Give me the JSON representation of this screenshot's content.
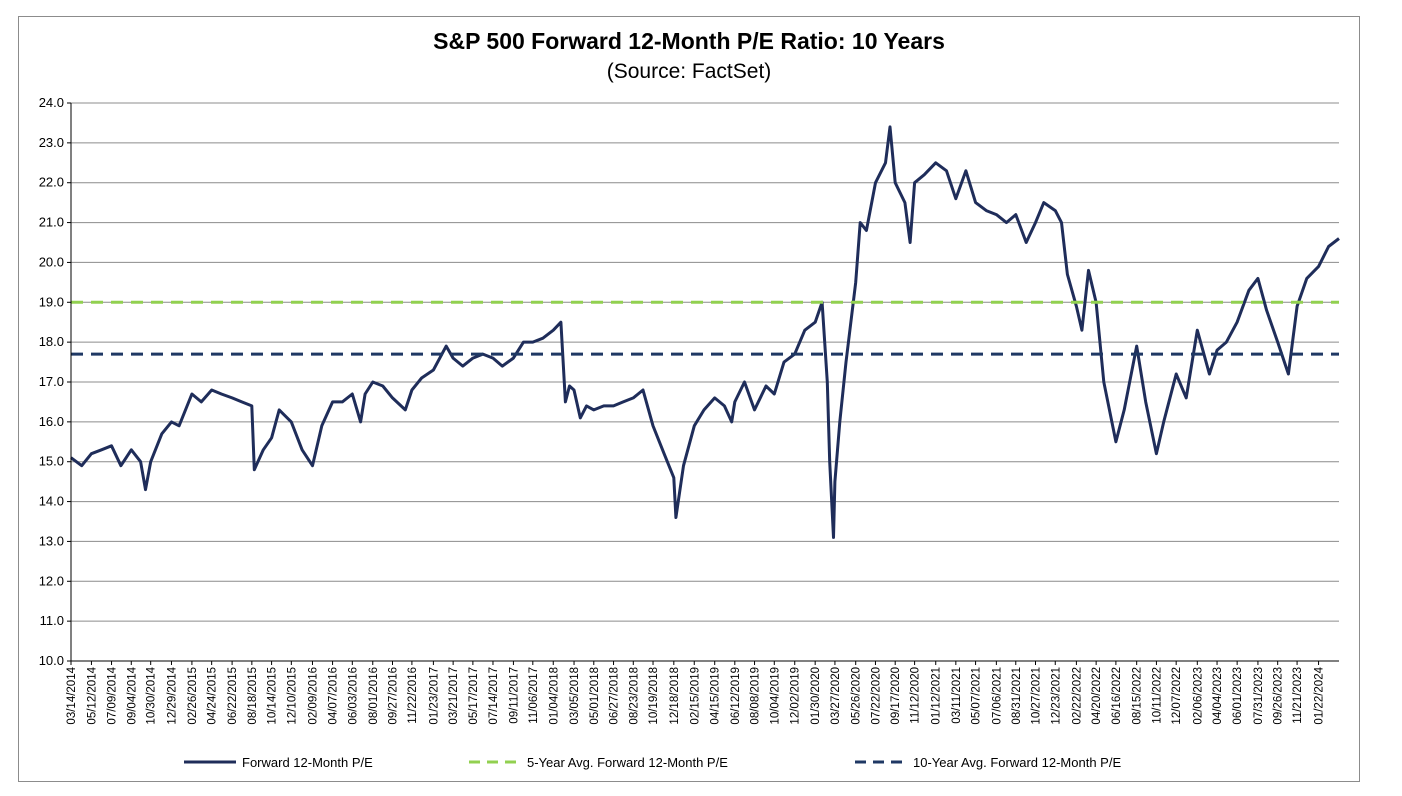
{
  "chart_data": {
    "type": "line",
    "title": "S&P 500 Forward 12-Month P/E Ratio: 10 Years",
    "subtitle": "(Source: FactSet)",
    "xlabel": "",
    "ylabel": "",
    "ylim": [
      10.0,
      24.0
    ],
    "yticks": [
      "10.0",
      "11.0",
      "12.0",
      "13.0",
      "14.0",
      "15.0",
      "16.0",
      "17.0",
      "18.0",
      "19.0",
      "20.0",
      "21.0",
      "22.0",
      "23.0",
      "24.0"
    ],
    "grid": "horizontal",
    "legend_position": "bottom",
    "xticks": [
      "03/14/2014",
      "05/12/2014",
      "07/09/2014",
      "09/04/2014",
      "10/30/2014",
      "12/29/2014",
      "02/26/2015",
      "04/24/2015",
      "06/22/2015",
      "08/18/2015",
      "10/14/2015",
      "12/10/2015",
      "02/09/2016",
      "04/07/2016",
      "06/03/2016",
      "08/01/2016",
      "09/27/2016",
      "11/22/2016",
      "01/23/2017",
      "03/21/2017",
      "05/17/2017",
      "07/14/2017",
      "09/11/2017",
      "11/06/2017",
      "01/04/2018",
      "03/05/2018",
      "05/01/2018",
      "06/27/2018",
      "08/23/2018",
      "10/19/2018",
      "12/18/2018",
      "02/15/2019",
      "04/15/2019",
      "06/12/2019",
      "08/08/2019",
      "10/04/2019",
      "12/02/2019",
      "01/30/2020",
      "03/27/2020",
      "05/26/2020",
      "07/22/2020",
      "09/17/2020",
      "11/12/2020",
      "01/12/2021",
      "03/11/2021",
      "05/07/2021",
      "07/06/2021",
      "08/31/2021",
      "10/27/2021",
      "12/23/2021",
      "02/22/2022",
      "04/20/2022",
      "06/16/2022",
      "08/15/2022",
      "10/11/2022",
      "12/07/2022",
      "02/06/2023",
      "04/04/2023",
      "06/01/2023",
      "07/31/2023",
      "09/26/2023",
      "11/21/2023",
      "01/22/2024"
    ],
    "x_range": [
      "03/14/2014",
      "03/21/2024"
    ],
    "series": [
      {
        "name": "Forward 12-Month P/E",
        "color": "#1f2d5a",
        "points": [
          [
            "03/14/2014",
            15.1
          ],
          [
            "04/14/2014",
            14.9
          ],
          [
            "05/12/2014",
            15.2
          ],
          [
            "06/10/2014",
            15.3
          ],
          [
            "07/09/2014",
            15.4
          ],
          [
            "08/05/2014",
            14.9
          ],
          [
            "09/04/2014",
            15.3
          ],
          [
            "10/01/2014",
            15.0
          ],
          [
            "10/15/2014",
            14.3
          ],
          [
            "10/30/2014",
            15.0
          ],
          [
            "12/01/2014",
            15.7
          ],
          [
            "12/29/2014",
            16.0
          ],
          [
            "01/20/2015",
            15.9
          ],
          [
            "02/26/2015",
            16.7
          ],
          [
            "03/25/2015",
            16.5
          ],
          [
            "04/24/2015",
            16.8
          ],
          [
            "05/22/2015",
            16.7
          ],
          [
            "06/22/2015",
            16.6
          ],
          [
            "07/20/2015",
            16.5
          ],
          [
            "08/18/2015",
            16.4
          ],
          [
            "08/25/2015",
            14.8
          ],
          [
            "09/20/2015",
            15.3
          ],
          [
            "10/14/2015",
            15.6
          ],
          [
            "11/05/2015",
            16.3
          ],
          [
            "12/10/2015",
            16.0
          ],
          [
            "01/10/2016",
            15.3
          ],
          [
            "02/09/2016",
            14.9
          ],
          [
            "03/07/2016",
            15.9
          ],
          [
            "04/07/2016",
            16.5
          ],
          [
            "05/05/2016",
            16.5
          ],
          [
            "06/03/2016",
            16.7
          ],
          [
            "06/27/2016",
            16.0
          ],
          [
            "07/10/2016",
            16.7
          ],
          [
            "08/01/2016",
            17.0
          ],
          [
            "08/30/2016",
            16.9
          ],
          [
            "09/27/2016",
            16.6
          ],
          [
            "11/03/2016",
            16.3
          ],
          [
            "11/22/2016",
            16.8
          ],
          [
            "12/20/2016",
            17.1
          ],
          [
            "01/23/2017",
            17.3
          ],
          [
            "03/01/2017",
            17.9
          ],
          [
            "03/21/2017",
            17.6
          ],
          [
            "04/18/2017",
            17.4
          ],
          [
            "05/17/2017",
            17.6
          ],
          [
            "06/15/2017",
            17.7
          ],
          [
            "07/14/2017",
            17.6
          ],
          [
            "08/10/2017",
            17.4
          ],
          [
            "09/11/2017",
            17.6
          ],
          [
            "10/10/2017",
            18.0
          ],
          [
            "11/06/2017",
            18.0
          ],
          [
            "12/05/2017",
            18.1
          ],
          [
            "01/04/2018",
            18.3
          ],
          [
            "01/26/2018",
            18.5
          ],
          [
            "02/08/2018",
            16.5
          ],
          [
            "02/20/2018",
            16.9
          ],
          [
            "03/05/2018",
            16.8
          ],
          [
            "03/23/2018",
            16.1
          ],
          [
            "04/10/2018",
            16.4
          ],
          [
            "05/01/2018",
            16.3
          ],
          [
            "05/30/2018",
            16.4
          ],
          [
            "06/27/2018",
            16.4
          ],
          [
            "07/25/2018",
            16.5
          ],
          [
            "08/23/2018",
            16.6
          ],
          [
            "09/20/2018",
            16.8
          ],
          [
            "10/19/2018",
            15.9
          ],
          [
            "11/20/2018",
            15.2
          ],
          [
            "12/18/2018",
            14.6
          ],
          [
            "12/24/2018",
            13.6
          ],
          [
            "01/15/2019",
            14.9
          ],
          [
            "02/15/2019",
            15.9
          ],
          [
            "03/15/2019",
            16.3
          ],
          [
            "04/15/2019",
            16.6
          ],
          [
            "05/13/2019",
            16.4
          ],
          [
            "06/03/2019",
            16.0
          ],
          [
            "06/12/2019",
            16.5
          ],
          [
            "07/10/2019",
            17.0
          ],
          [
            "08/08/2019",
            16.3
          ],
          [
            "09/10/2019",
            16.9
          ],
          [
            "10/04/2019",
            16.7
          ],
          [
            "11/01/2019",
            17.5
          ],
          [
            "12/02/2019",
            17.7
          ],
          [
            "12/31/2019",
            18.3
          ],
          [
            "01/30/2020",
            18.5
          ],
          [
            "02/19/2020",
            19.0
          ],
          [
            "03/05/2020",
            17.0
          ],
          [
            "03/12/2020",
            15.0
          ],
          [
            "03/23/2020",
            13.1
          ],
          [
            "03/27/2020",
            14.5
          ],
          [
            "04/10/2020",
            16.0
          ],
          [
            "04/28/2020",
            17.5
          ],
          [
            "05/26/2020",
            19.5
          ],
          [
            "06/08/2020",
            21.0
          ],
          [
            "06/26/2020",
            20.8
          ],
          [
            "07/22/2020",
            22.0
          ],
          [
            "08/20/2020",
            22.5
          ],
          [
            "09/02/2020",
            23.4
          ],
          [
            "09/17/2020",
            22.0
          ],
          [
            "10/15/2020",
            21.5
          ],
          [
            "10/30/2020",
            20.5
          ],
          [
            "11/12/2020",
            22.0
          ],
          [
            "12/10/2020",
            22.2
          ],
          [
            "01/12/2021",
            22.5
          ],
          [
            "02/12/2021",
            22.3
          ],
          [
            "03/11/2021",
            21.6
          ],
          [
            "04/09/2021",
            22.3
          ],
          [
            "05/07/2021",
            21.5
          ],
          [
            "06/07/2021",
            21.3
          ],
          [
            "07/06/2021",
            21.2
          ],
          [
            "08/04/2021",
            21.0
          ],
          [
            "08/31/2021",
            21.2
          ],
          [
            "09/30/2021",
            20.5
          ],
          [
            "10/27/2021",
            21.0
          ],
          [
            "11/20/2021",
            21.5
          ],
          [
            "12/23/2021",
            21.3
          ],
          [
            "01/10/2022",
            21.0
          ],
          [
            "01/27/2022",
            19.7
          ],
          [
            "02/22/2022",
            18.9
          ],
          [
            "03/10/2022",
            18.3
          ],
          [
            "03/29/2022",
            19.8
          ],
          [
            "04/20/2022",
            19.0
          ],
          [
            "05/12/2022",
            17.0
          ],
          [
            "06/16/2022",
            15.5
          ],
          [
            "07/10/2022",
            16.3
          ],
          [
            "08/15/2022",
            17.9
          ],
          [
            "09/10/2022",
            16.5
          ],
          [
            "10/11/2022",
            15.2
          ],
          [
            "11/01/2022",
            16.0
          ],
          [
            "12/07/2022",
            17.2
          ],
          [
            "01/05/2023",
            16.6
          ],
          [
            "02/06/2023",
            18.3
          ],
          [
            "03/13/2023",
            17.2
          ],
          [
            "04/04/2023",
            17.8
          ],
          [
            "05/01/2023",
            18.0
          ],
          [
            "06/01/2023",
            18.5
          ],
          [
            "07/05/2023",
            19.3
          ],
          [
            "07/31/2023",
            19.6
          ],
          [
            "08/25/2023",
            18.8
          ],
          [
            "09/26/2023",
            18.0
          ],
          [
            "10/27/2023",
            17.2
          ],
          [
            "11/21/2023",
            18.9
          ],
          [
            "12/19/2023",
            19.6
          ],
          [
            "01/22/2024",
            19.9
          ],
          [
            "02/20/2024",
            20.4
          ],
          [
            "03/21/2024",
            20.6
          ]
        ]
      },
      {
        "name": "5-Year Avg. Forward 12-Month P/E",
        "color": "#92d050",
        "style": "dashed",
        "value": 19.0
      },
      {
        "name": "10-Year Avg. Forward 12-Month P/E",
        "color": "#1f3864",
        "style": "dashed",
        "value": 17.7
      }
    ]
  }
}
